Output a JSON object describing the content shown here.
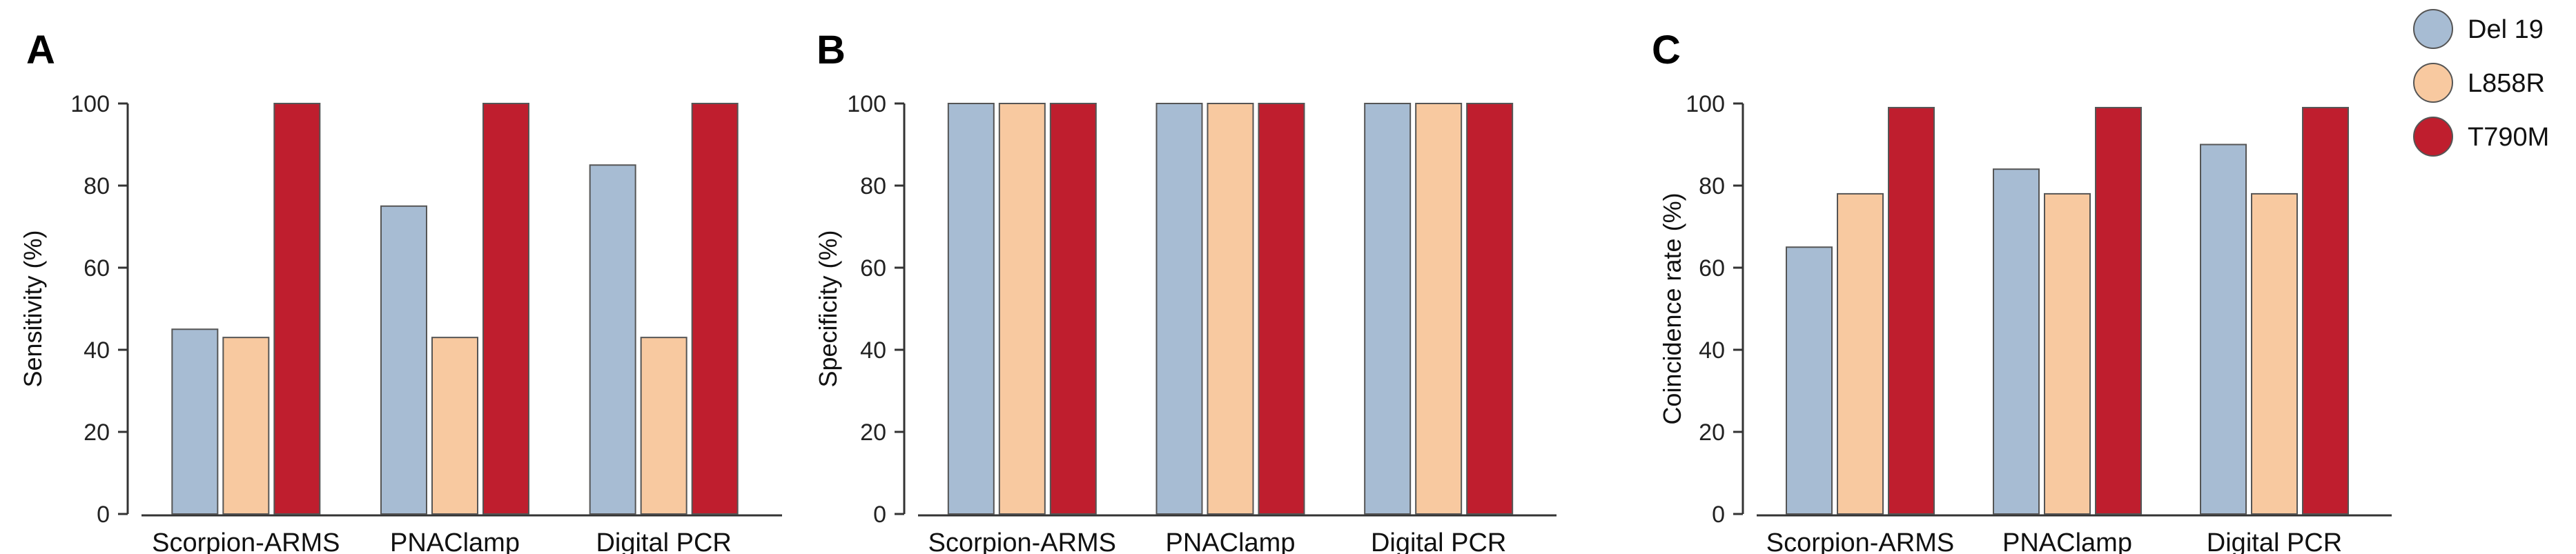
{
  "legend": [
    {
      "label": "Del 19",
      "color": "#a7bcd3"
    },
    {
      "label": "L858R",
      "color": "#f8c9a0"
    },
    {
      "label": "T790M",
      "color": "#bf1e2e"
    }
  ],
  "chart_data": [
    {
      "type": "bar",
      "panel": "A",
      "ylabel": "Sensitivity (%)",
      "ylim": [
        0,
        100
      ],
      "yticks": [
        "0",
        "20",
        "40",
        "60",
        "80",
        "100"
      ],
      "categories": [
        "Scorpion-ARMS",
        "PNAClamp",
        "Digital PCR"
      ],
      "series": [
        {
          "name": "Del 19",
          "values": [
            45,
            75,
            85
          ]
        },
        {
          "name": "L858R",
          "values": [
            43,
            43,
            43
          ]
        },
        {
          "name": "T790M",
          "values": [
            100,
            100,
            100
          ]
        }
      ]
    },
    {
      "type": "bar",
      "panel": "B",
      "ylabel": "Specificity (%)",
      "ylim": [
        0,
        100
      ],
      "yticks": [
        "0",
        "20",
        "40",
        "60",
        "80",
        "100"
      ],
      "categories": [
        "Scorpion-ARMS",
        "PNAClamp",
        "Digital PCR"
      ],
      "series": [
        {
          "name": "Del 19",
          "values": [
            100,
            100,
            100
          ]
        },
        {
          "name": "L858R",
          "values": [
            100,
            100,
            100
          ]
        },
        {
          "name": "T790M",
          "values": [
            100,
            100,
            100
          ]
        }
      ]
    },
    {
      "type": "bar",
      "panel": "C",
      "ylabel": "Coincidence rate (%)",
      "ylim": [
        0,
        100
      ],
      "yticks": [
        "0",
        "20",
        "40",
        "60",
        "80",
        "100"
      ],
      "categories": [
        "Scorpion-ARMS",
        "PNAClamp",
        "Digital PCR"
      ],
      "series": [
        {
          "name": "Del 19",
          "values": [
            65,
            84,
            90
          ]
        },
        {
          "name": "L858R",
          "values": [
            78,
            78,
            78
          ]
        },
        {
          "name": "T790M",
          "values": [
            99,
            99,
            99
          ]
        }
      ]
    }
  ]
}
